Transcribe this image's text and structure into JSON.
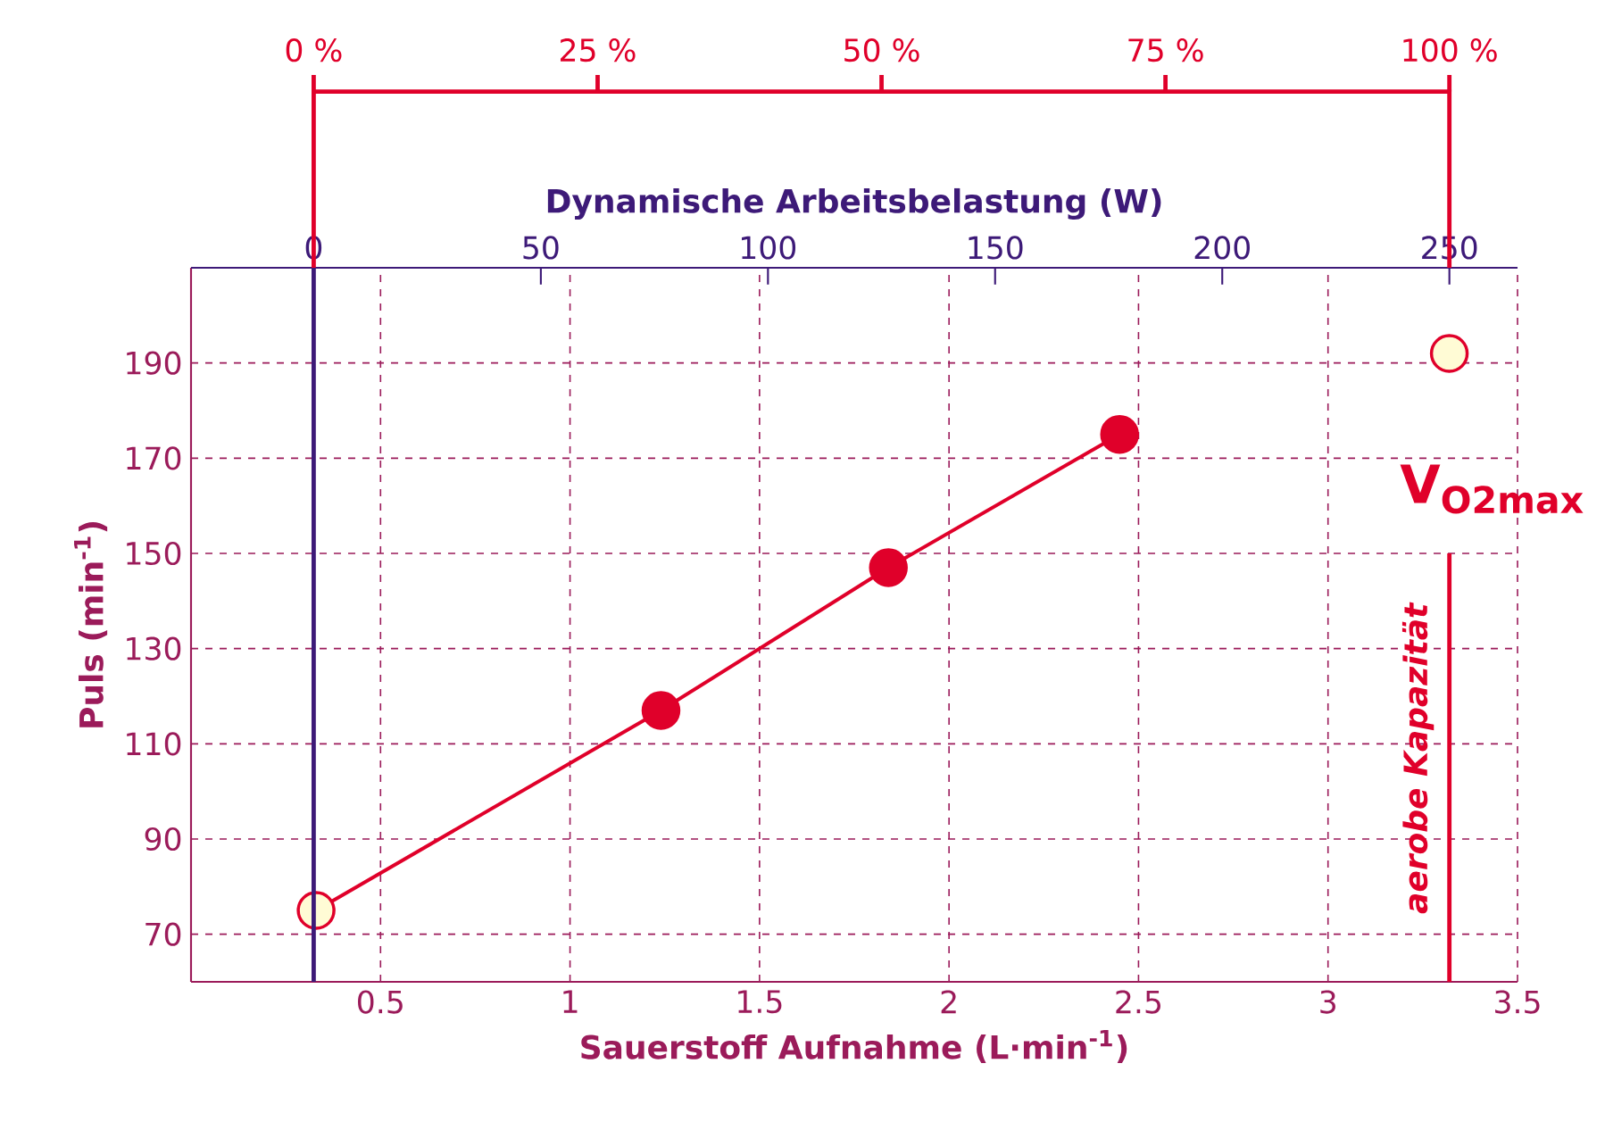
{
  "chart_data": {
    "type": "line",
    "xlabel": "Sauerstoff Aufnahme (L·min$^{-1}$)",
    "ylabel": "Puls (min$^{-1}$)",
    "x2label": "Dynamische Arbeitsbelastung (W)",
    "xlim": [
      0,
      3.5
    ],
    "xticks": [
      0.5,
      1,
      1.5,
      2,
      2.5,
      3,
      3.5
    ],
    "ylim": [
      60,
      210
    ],
    "yticks": [
      70,
      90,
      110,
      130,
      150,
      170,
      190
    ],
    "x2lim": [
      -27,
      265
    ],
    "x2ticks": [
      0,
      50,
      100,
      150,
      200,
      250
    ],
    "grid": true,
    "series": [
      {
        "color": "#e0002a",
        "marker": "circle",
        "line_style": "solid",
        "x": [
          0.33,
          1.24,
          1.84,
          2.45
        ],
        "values": [
          75,
          117,
          147,
          175
        ],
        "colors": [
          "#fffbd5",
          "#e0002a",
          "#e0002a",
          "#e0002a"
        ]
      },
      {
        "type": "scatter",
        "color": "#e0002a",
        "marker": "circle",
        "x": [
          3.32
        ],
        "values": [
          192
        ],
        "colors": [
          "#fffbd5"
        ]
      }
    ],
    "ref_lines": [
      {
        "axis": "x2",
        "value": 0,
        "color": "#3d1a78"
      },
      {
        "axis": "x2",
        "value": 250,
        "label": "aerobe Kapazität",
        "color": "#e0002a"
      }
    ],
    "annotations": [
      "V$_{O2max}$",
      "0 %",
      "25 %",
      "50 %",
      "75 %",
      "100 %"
    ]
  }
}
